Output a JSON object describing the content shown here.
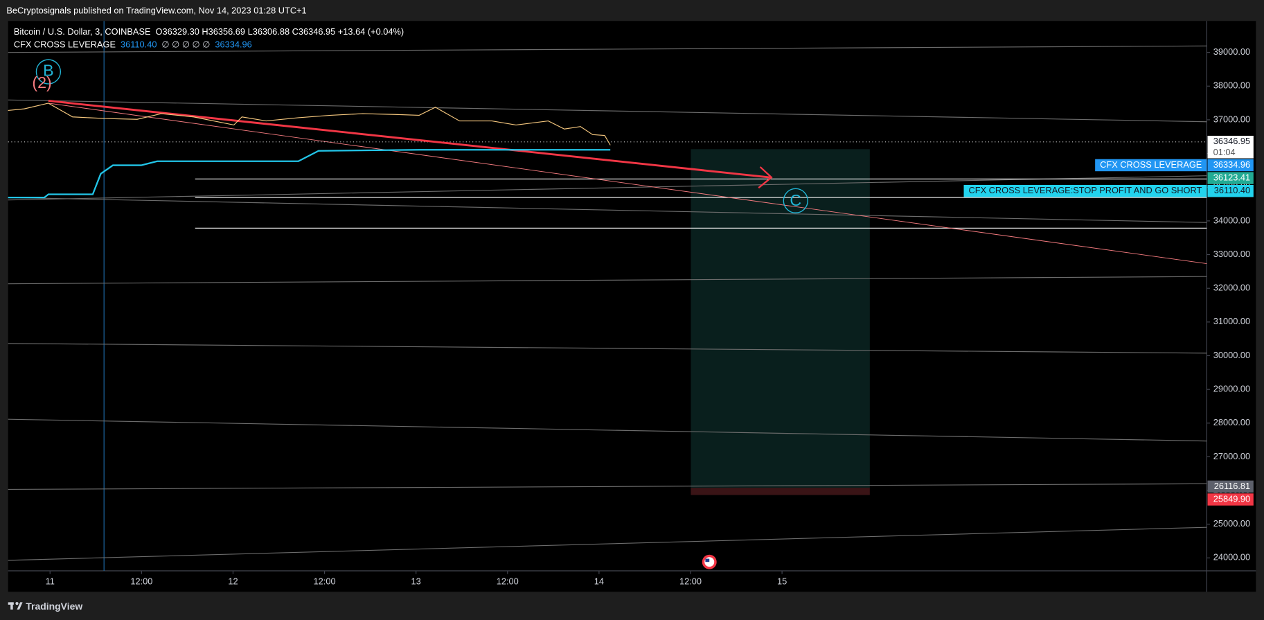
{
  "header": {
    "published": "BeCryptosignals published on TradingView.com, Nov 14, 2023 01:28 UTC+1",
    "brand": "TradingView"
  },
  "chart_data": {
    "type": "line",
    "quote": "O36329.30 H36356.69 L36306.88 C36346.95 +13.64 (+0.04%)",
    "indicator_readout": [
      "36110.40",
      "∅ ∅ ∅ ∅ ∅",
      "36334.96"
    ],
    "series": [
      {
        "name": "Bitcoin / U.S. Dollar, 3, COINBASE",
        "color": "#f5c77e",
        "x": [
          -5.5,
          -3.38,
          -0.21,
          2.96,
          7.19,
          11.42,
          14.59,
          18.82,
          24.11,
          25.17,
          28.34,
          32.57,
          36.79,
          41.02,
          45.25,
          48.42,
          50.54,
          53.71,
          57.94,
          61.11,
          65.34,
          67.45,
          69.57,
          71.15,
          72.74,
          73.48
        ],
        "values": [
          37277,
          37325,
          37493,
          37086,
          37038,
          37014,
          37182,
          37086,
          36847,
          37086,
          36967,
          37062,
          37134,
          37182,
          37158,
          37134,
          37373,
          36967,
          36967,
          36847,
          36967,
          36727,
          36799,
          36560,
          36536,
          36249
        ]
      },
      {
        "name": "CFX CROSS LEVERAGE",
        "color": "#22c5e8",
        "x": [
          -5.5,
          -0.74,
          -0.21,
          5.6,
          6.66,
          8.25,
          11.95,
          14.06,
          32.57,
          35.21,
          48.42,
          73.48
        ],
        "values": [
          34694,
          34694,
          34790,
          34790,
          35400,
          35650,
          35650,
          35770,
          35770,
          36080,
          36110,
          36110
        ]
      }
    ],
    "xlim": [
      -5.5,
      151.7
    ],
    "xticks": [
      {
        "value": 0,
        "label": "11"
      },
      {
        "value": 12,
        "label": "12:00"
      },
      {
        "value": 24,
        "label": "12"
      },
      {
        "value": 36,
        "label": "12:00"
      },
      {
        "value": 48,
        "label": "13"
      },
      {
        "value": 60,
        "label": "12:00"
      },
      {
        "value": 72,
        "label": "14"
      },
      {
        "value": 84,
        "label": "12:00"
      },
      {
        "value": 96,
        "label": "15"
      }
    ],
    "ylim": [
      23617,
      39933
    ],
    "yticks": [
      {
        "value": 24000,
        "label": "24000.00"
      },
      {
        "value": 25000,
        "label": "25000.00"
      },
      {
        "value": 26000,
        "label": "26000.00"
      },
      {
        "value": 27000,
        "label": "27000.00"
      },
      {
        "value": 28000,
        "label": "28000.00"
      },
      {
        "value": 29000,
        "label": "29000.00"
      },
      {
        "value": 30000,
        "label": "30000.00"
      },
      {
        "value": 31000,
        "label": "31000.00"
      },
      {
        "value": 32000,
        "label": "32000.00"
      },
      {
        "value": 33000,
        "label": "33000.00"
      },
      {
        "value": 34000,
        "label": "34000.00"
      },
      {
        "value": 35000,
        "label": "35000.00"
      },
      {
        "value": 36000,
        "label": "36000.00"
      },
      {
        "value": 37000,
        "label": "37000.00"
      },
      {
        "value": 38000,
        "label": "38000.00"
      },
      {
        "value": 39000,
        "label": "39000.00"
      }
    ],
    "price_labels": [
      {
        "value": 36346.95,
        "label": "36346.95",
        "timer": "01:04",
        "color": "#ffffff",
        "text_color": "#131722"
      },
      {
        "value": 36334.96,
        "label": "36334.96",
        "name": "CFX CROSS LEVERAGE",
        "color": "#2196f3",
        "text_color": "#ffffff"
      },
      {
        "value": 36123.41,
        "label": "36123.41",
        "color": "#22ab94",
        "text_color": "#ffffff"
      },
      {
        "value": 36110.4,
        "label": "36110.40",
        "name": "CFX CROSS LEVERAGE:STOP PROFIT AND GO SHORT",
        "color": "#22d3ee",
        "text_color": "#131722"
      },
      {
        "value": 26116.81,
        "label": "26116.81",
        "color": "#5d606b",
        "text_color": "#ffffff"
      },
      {
        "value": 25849.9,
        "label": "25849.90",
        "color": "#f23645",
        "text_color": "#ffffff"
      }
    ],
    "annotations": [
      {
        "label": "B"
      },
      {
        "label": "(2)"
      },
      {
        "label": "C"
      }
    ]
  }
}
